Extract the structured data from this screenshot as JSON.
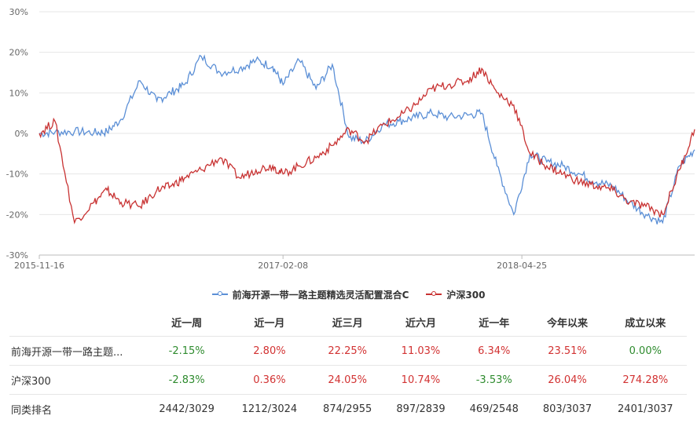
{
  "chart_data": {
    "type": "line",
    "x_tick_labels": [
      "2015-11-16",
      "2017-02-08",
      "2018-04-25"
    ],
    "y_tick_labels": [
      "30%",
      "20%",
      "10%",
      "0%",
      "-10%",
      "-20%",
      "-30%"
    ],
    "ylim": [
      -30,
      30
    ],
    "grid": true,
    "legend_position": "bottom",
    "series": [
      {
        "name": "前海开源一带一路主题精选灵活配置混合C",
        "color": "#5b8fd6",
        "x": [
          "2015-11-16",
          "2015-12-15",
          "2016-01-20",
          "2016-02-25",
          "2016-03-20",
          "2016-04-15",
          "2016-05-20",
          "2016-06-20",
          "2016-07-15",
          "2016-08-10",
          "2016-09-10",
          "2016-10-15",
          "2016-11-20",
          "2016-12-20",
          "2017-01-20",
          "2017-02-08",
          "2017-03-10",
          "2017-04-10",
          "2017-05-10",
          "2017-06-10",
          "2017-07-10",
          "2017-08-10",
          "2017-09-10",
          "2017-10-10",
          "2017-11-10",
          "2017-12-10",
          "2018-01-15",
          "2018-02-10",
          "2018-03-10",
          "2018-04-10",
          "2018-05-10",
          "2018-06-10",
          "2018-07-10",
          "2018-08-10",
          "2018-09-10",
          "2018-10-10",
          "2018-11-10",
          "2018-12-10",
          "2019-01-10",
          "2019-02-10",
          "2019-03-10"
        ],
        "values": [
          0,
          0.3,
          0.5,
          0.2,
          0.4,
          3.5,
          13,
          8,
          10,
          12,
          19,
          15,
          16,
          18,
          16.5,
          12,
          18,
          11,
          17,
          -1,
          -2,
          2,
          3,
          4,
          5,
          4,
          4.5,
          5,
          -8,
          -20,
          -5,
          -7,
          -8,
          -10,
          -12,
          -13,
          -17,
          -20,
          -22,
          -8,
          -4
        ]
      },
      {
        "name": "沪深300",
        "color": "#c83232",
        "x": [
          "2015-11-16",
          "2015-12-15",
          "2016-01-20",
          "2016-02-25",
          "2016-03-20",
          "2016-04-15",
          "2016-05-20",
          "2016-06-20",
          "2016-07-15",
          "2016-08-10",
          "2016-09-10",
          "2016-10-15",
          "2016-11-20",
          "2016-12-20",
          "2017-01-20",
          "2017-02-08",
          "2017-03-10",
          "2017-04-10",
          "2017-05-10",
          "2017-06-10",
          "2017-07-10",
          "2017-08-10",
          "2017-09-10",
          "2017-10-10",
          "2017-11-10",
          "2017-12-10",
          "2018-01-15",
          "2018-02-10",
          "2018-03-10",
          "2018-04-10",
          "2018-05-10",
          "2018-06-10",
          "2018-07-10",
          "2018-08-10",
          "2018-09-10",
          "2018-10-10",
          "2018-11-10",
          "2018-12-10",
          "2019-01-10",
          "2019-02-10",
          "2019-03-10"
        ],
        "values": [
          0,
          3,
          -22,
          -17,
          -14,
          -17,
          -18,
          -14,
          -13,
          -11,
          -9,
          -6,
          -11,
          -9,
          -8,
          -10,
          -8,
          -6,
          -3,
          1,
          -2,
          2,
          4,
          7,
          11,
          12,
          13,
          16,
          10,
          7,
          -5,
          -8,
          -10,
          -12,
          -13,
          -14,
          -17,
          -18,
          -20,
          -9,
          1
        ]
      }
    ]
  },
  "table": {
    "headers": [
      "",
      "近一周",
      "近一月",
      "近三月",
      "近六月",
      "近一年",
      "今年以来",
      "成立以来"
    ],
    "rows": [
      {
        "name": "前海开源一带一路主题...",
        "values": [
          "-2.15%",
          "2.80%",
          "22.25%",
          "11.03%",
          "6.34%",
          "23.51%",
          "0.00%"
        ],
        "colors": [
          "neg",
          "pos",
          "pos",
          "pos",
          "pos",
          "pos",
          "zero"
        ]
      },
      {
        "name": "沪深300",
        "values": [
          "-2.83%",
          "0.36%",
          "24.05%",
          "10.74%",
          "-3.53%",
          "26.04%",
          "274.28%"
        ],
        "colors": [
          "neg",
          "pos",
          "pos",
          "pos",
          "neg",
          "pos",
          "pos"
        ]
      },
      {
        "name": "同类排名",
        "values": [
          "2442/3029",
          "1212/3024",
          "874/2955",
          "897/2839",
          "469/2548",
          "803/3037",
          "2401/3037"
        ],
        "colors": [
          "neutral",
          "neutral",
          "neutral",
          "neutral",
          "neutral",
          "neutral",
          "neutral"
        ]
      }
    ]
  }
}
